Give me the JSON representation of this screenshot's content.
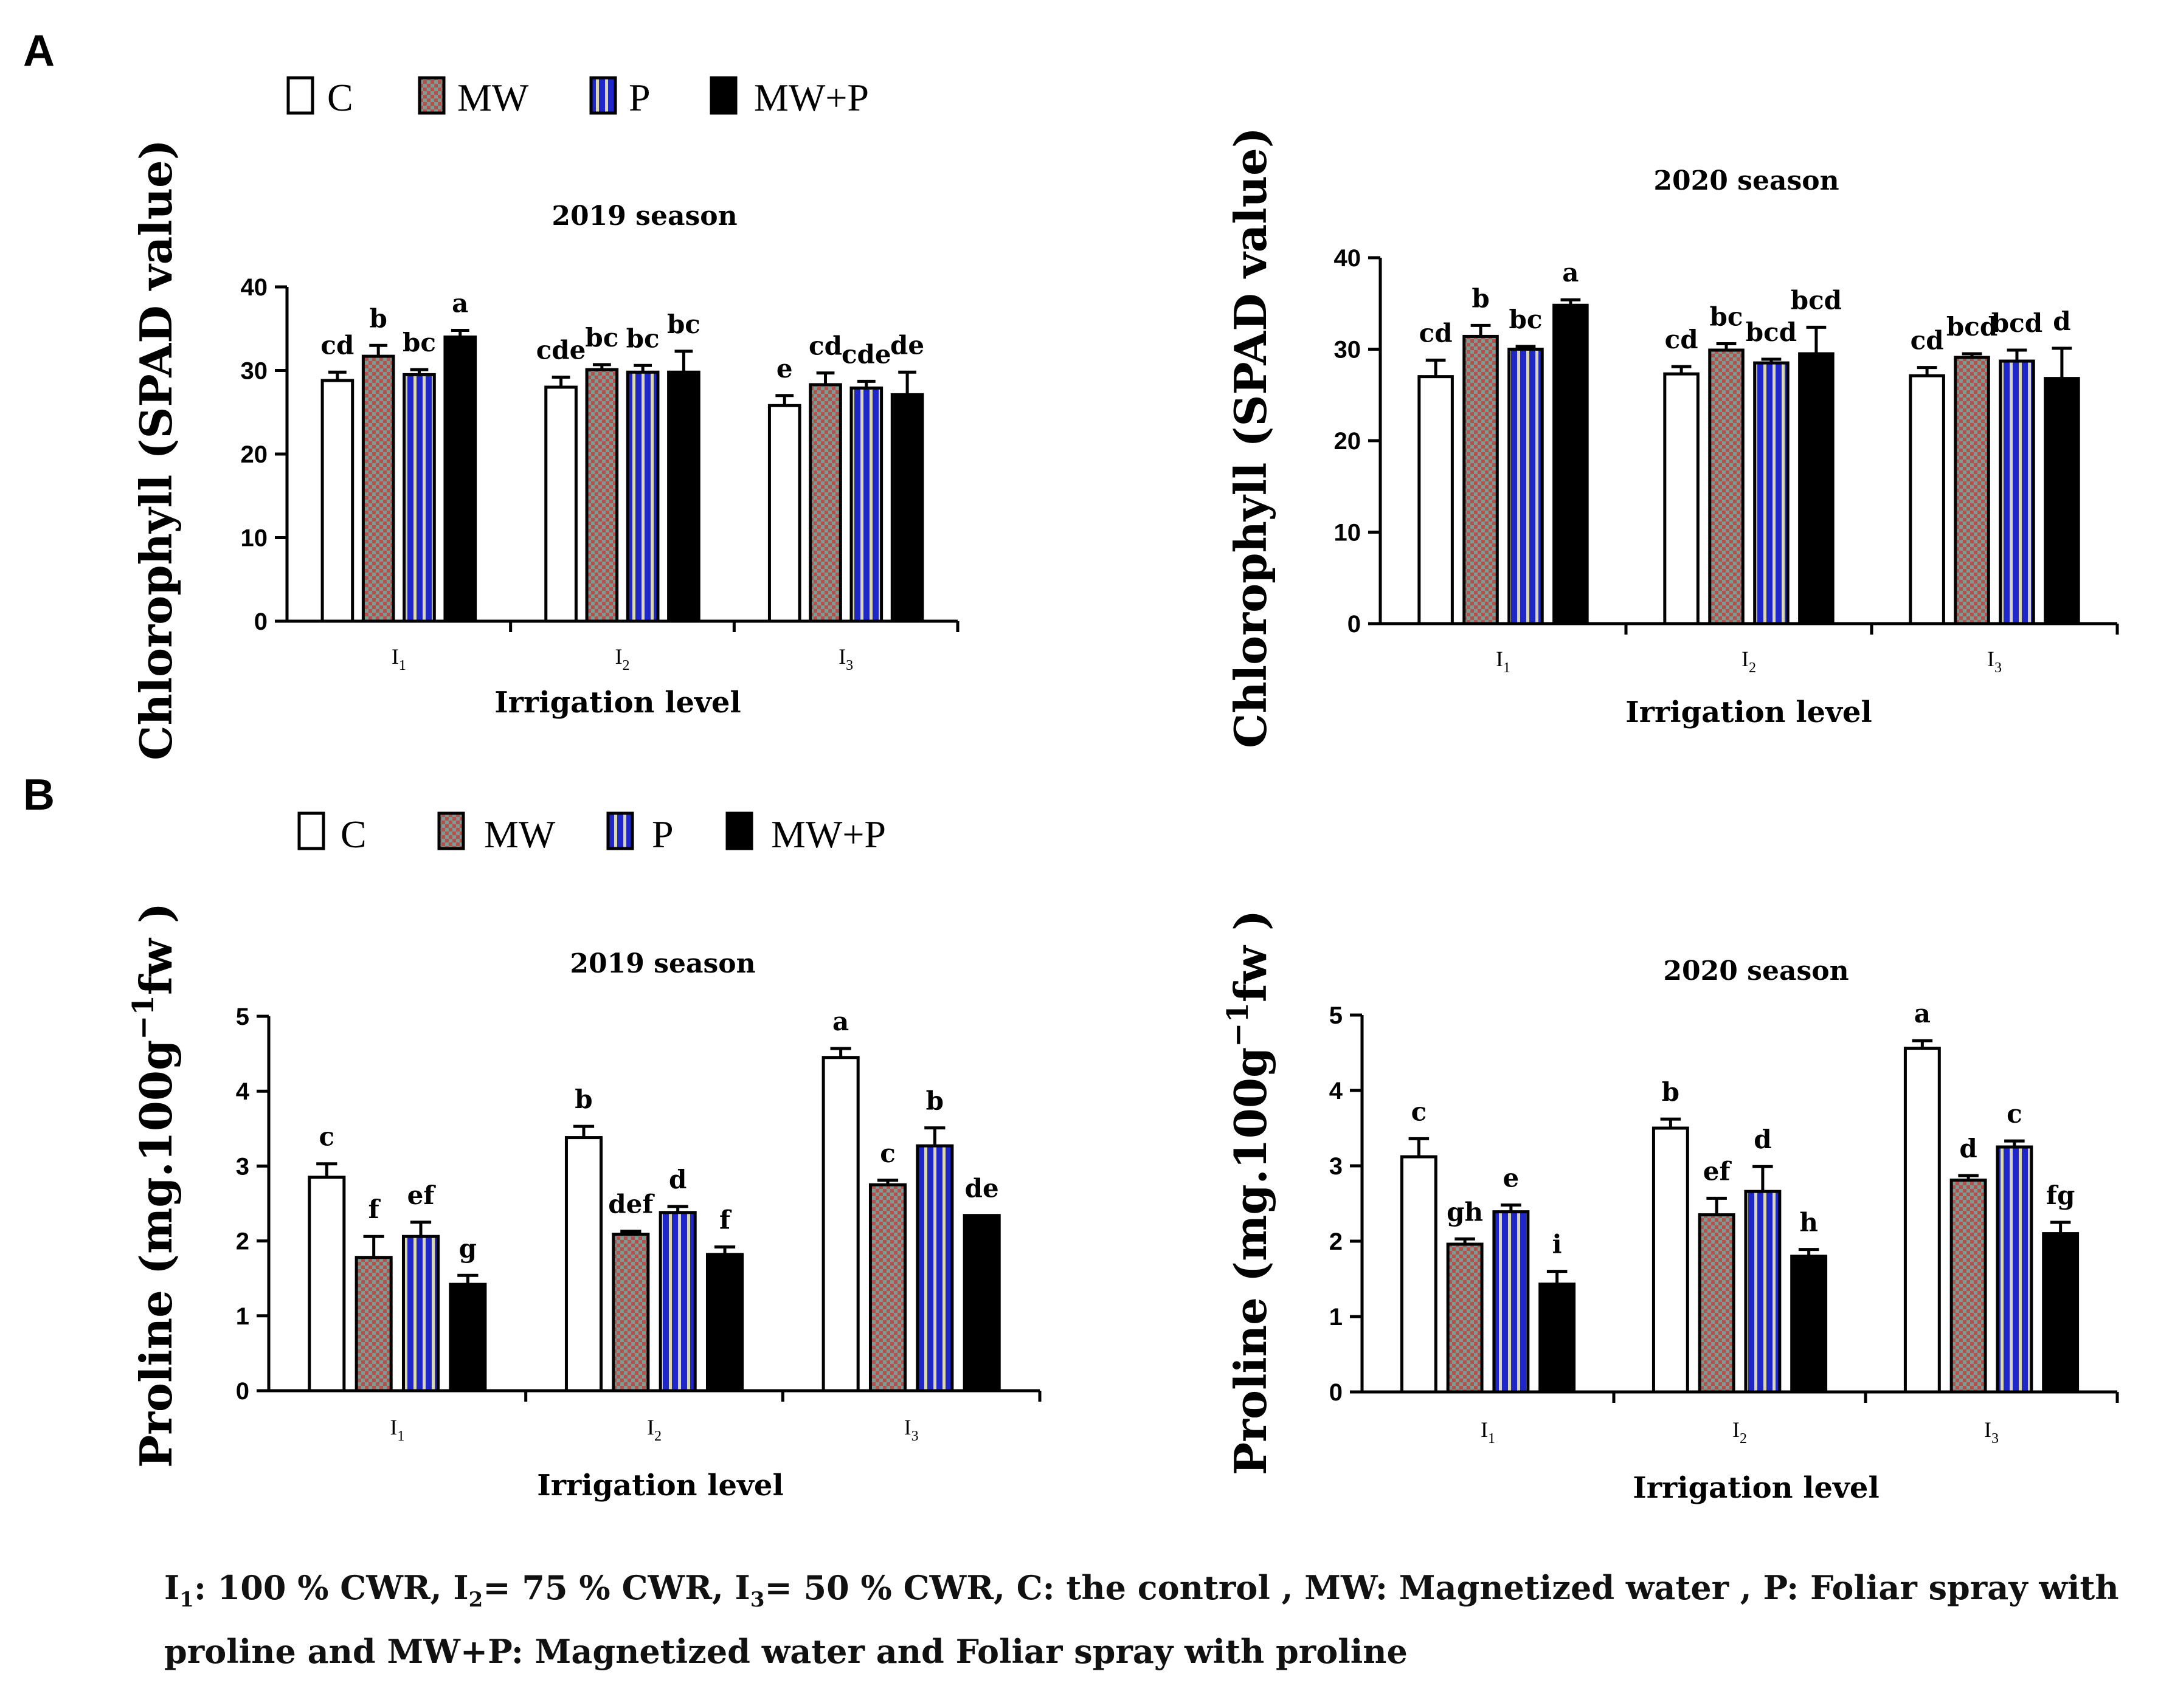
{
  "colors": {
    "C": "#ffffff",
    "MW_a": "#7f9a92",
    "MW_b": "#b1524d",
    "P_blue": "#1f27c8",
    "P_stripe": "#d9d6b4",
    "MWP": "#000000"
  },
  "panels": [
    {
      "letter": "A",
      "legend": [
        "C",
        "MW",
        "P",
        "MW+P"
      ]
    },
    {
      "letter": "B",
      "legend": [
        "C",
        "MW",
        "P",
        "MW+P"
      ]
    }
  ],
  "chart_data": [
    {
      "type": "bar",
      "panel": "A",
      "title": "2019 season",
      "ylabel": "Chlorophyll (SPAD value)",
      "xlabel": "Irrigation level",
      "categories": [
        "I1",
        "I2",
        "I3"
      ],
      "category_sub": [
        "1",
        "2",
        "3"
      ],
      "ylim": [
        0,
        40
      ],
      "yticks": [
        "0",
        "10",
        "20",
        "30",
        "40"
      ],
      "series": [
        {
          "name": "C",
          "values": [
            28.8,
            28.0,
            25.8
          ],
          "errors": [
            1.0,
            1.2,
            1.2
          ],
          "letters": [
            "cd",
            "cde",
            "e"
          ]
        },
        {
          "name": "MW",
          "values": [
            31.7,
            30.1,
            28.3
          ],
          "errors": [
            1.3,
            0.6,
            1.4
          ],
          "letters": [
            "b",
            "bc",
            "cd"
          ]
        },
        {
          "name": "P",
          "values": [
            29.5,
            29.8,
            27.9
          ],
          "errors": [
            0.6,
            0.8,
            0.8
          ],
          "letters": [
            "bc",
            "bc",
            "cde"
          ]
        },
        {
          "name": "MW+P",
          "values": [
            34.0,
            29.8,
            27.1
          ],
          "errors": [
            0.8,
            2.5,
            2.7
          ],
          "letters": [
            "a",
            "bc",
            "de"
          ]
        }
      ]
    },
    {
      "type": "bar",
      "panel": "A",
      "title": "2020  season",
      "ylabel": "Chlorophyll (SPAD value)",
      "xlabel": "Irrigation level",
      "categories": [
        "I1",
        "I2",
        "I3"
      ],
      "category_sub": [
        "1",
        "2",
        "3"
      ],
      "ylim": [
        0,
        40
      ],
      "yticks": [
        "0",
        "10",
        "20",
        "30",
        "40"
      ],
      "series": [
        {
          "name": "C",
          "values": [
            27.0,
            27.3,
            27.1
          ],
          "errors": [
            1.8,
            0.8,
            0.9
          ],
          "letters": [
            "cd",
            "cd",
            "cd"
          ]
        },
        {
          "name": "MW",
          "values": [
            31.4,
            29.9,
            29.1
          ],
          "errors": [
            1.2,
            0.7,
            0.4
          ],
          "letters": [
            "b",
            "bc",
            "bcd"
          ]
        },
        {
          "name": "P",
          "values": [
            30.0,
            28.5,
            28.7
          ],
          "errors": [
            0.3,
            0.4,
            1.2
          ],
          "letters": [
            "bc",
            "bcd",
            "bcd"
          ]
        },
        {
          "name": "MW+P",
          "values": [
            34.8,
            29.5,
            26.8
          ],
          "errors": [
            0.6,
            2.9,
            3.3
          ],
          "letters": [
            "a",
            "bcd",
            "d"
          ]
        }
      ]
    },
    {
      "type": "bar",
      "panel": "B",
      "title": "2019 season",
      "ylabel": "Proline  (mg.100g",
      "ylabel_sup": "−1",
      "ylabel_end": "fw )",
      "xlabel": "Irrigation level",
      "categories": [
        "I1",
        "I2",
        "I3"
      ],
      "category_sub": [
        "1",
        "2",
        "3"
      ],
      "ylim": [
        0,
        5
      ],
      "yticks": [
        "0",
        "1",
        "2",
        "3",
        "4",
        "5"
      ],
      "series": [
        {
          "name": "C",
          "values": [
            2.85,
            3.38,
            4.45
          ],
          "errors": [
            0.18,
            0.15,
            0.12
          ],
          "letters": [
            "c",
            "b",
            "a"
          ]
        },
        {
          "name": "MW",
          "values": [
            1.78,
            2.09,
            2.75
          ],
          "errors": [
            0.28,
            0.04,
            0.06
          ],
          "letters": [
            "f",
            "def",
            "c"
          ]
        },
        {
          "name": "P",
          "values": [
            2.06,
            2.38,
            3.27
          ],
          "errors": [
            0.19,
            0.08,
            0.24
          ],
          "letters": [
            "ef",
            "d",
            "b"
          ]
        },
        {
          "name": "MW+P",
          "values": [
            1.42,
            1.82,
            2.34
          ],
          "errors": [
            0.12,
            0.1,
            0.0
          ],
          "letters": [
            "g",
            "f",
            "de"
          ]
        }
      ]
    },
    {
      "type": "bar",
      "panel": "B",
      "title": "2020 season",
      "ylabel": "Proline  (mg.100g",
      "ylabel_sup": "−1",
      "ylabel_end": "fw )",
      "xlabel": "Irrigation level",
      "categories": [
        "I1",
        "I2",
        "I3"
      ],
      "category_sub": [
        "1",
        "2",
        "3"
      ],
      "ylim": [
        0,
        5
      ],
      "yticks": [
        "0",
        "1",
        "2",
        "3",
        "4",
        "5"
      ],
      "series": [
        {
          "name": "C",
          "values": [
            3.12,
            3.5,
            4.56
          ],
          "errors": [
            0.24,
            0.12,
            0.1
          ],
          "letters": [
            "c",
            "b",
            "a"
          ]
        },
        {
          "name": "MW",
          "values": [
            1.96,
            2.35,
            2.81
          ],
          "errors": [
            0.07,
            0.22,
            0.06
          ],
          "letters": [
            "gh",
            "ef",
            "d"
          ]
        },
        {
          "name": "P",
          "values": [
            2.39,
            2.66,
            3.25
          ],
          "errors": [
            0.09,
            0.33,
            0.08
          ],
          "letters": [
            "e",
            "d",
            "c"
          ]
        },
        {
          "name": "MW+P",
          "values": [
            1.43,
            1.8,
            2.1
          ],
          "errors": [
            0.17,
            0.09,
            0.15
          ],
          "letters": [
            "i",
            "h",
            "fg"
          ]
        }
      ]
    }
  ],
  "caption": {
    "i1": "I",
    "i1_sub": "1",
    "i1_text": ": 100 % CWR, ",
    "i2": "I",
    "i2_sub": "2",
    "i2_text": "= 75 % CWR, ",
    "i3": "I",
    "i3_sub": "3",
    "i3_text": "= 50 % CWR, C: the control , MW: Magnetized water , P: Foliar spray with proline and MW+P: Magnetized water and Foliar spray with proline"
  }
}
